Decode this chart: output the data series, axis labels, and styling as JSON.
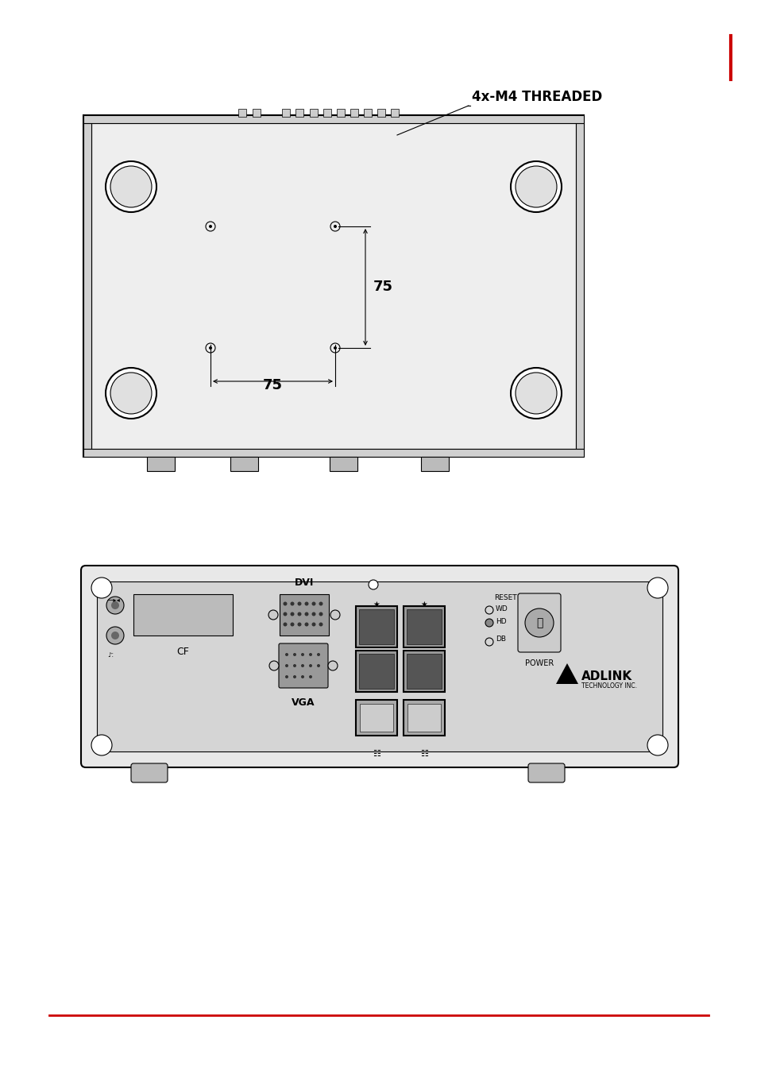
{
  "bg_color": "#ffffff",
  "line_color": "#000000",
  "red_bar_color": "#cc0000",
  "dim_75_label": "75",
  "threaded_label": "4x-M4 THREADED",
  "dvi_label": "DVI",
  "vga_label": "VGA",
  "cf_label": "CF",
  "power_label": "POWER",
  "reset_label": "RESET",
  "wd_label": "WD",
  "hd_label": "HD",
  "db_label": "DB"
}
